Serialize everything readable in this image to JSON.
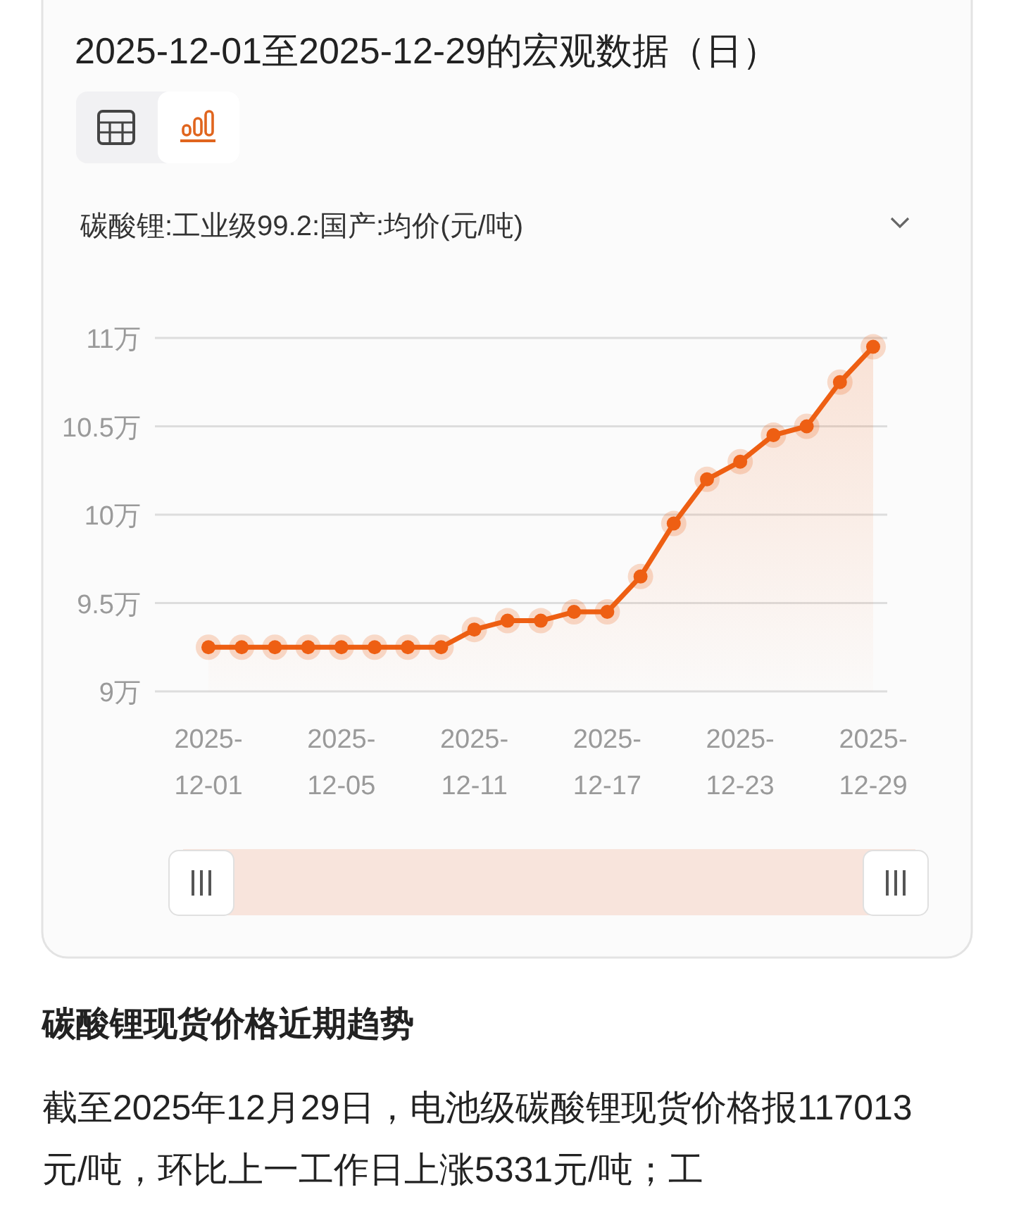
{
  "chart_data": {
    "type": "area",
    "title": "2025-12-01至2025-12-29的宏观数据（日）",
    "subtitle": "碳酸锂:工业级99.2:国产:均价(元/吨)",
    "categories": [
      "2025-12-01",
      null,
      null,
      null,
      "2025-12-05",
      null,
      null,
      null,
      "2025-12-11",
      null,
      null,
      null,
      "2025-12-17",
      null,
      null,
      null,
      "2025-12-23",
      null,
      null,
      null,
      "2025-12-29"
    ],
    "values": [
      9.25,
      9.25,
      9.25,
      9.25,
      9.25,
      9.25,
      9.25,
      9.25,
      9.35,
      9.4,
      9.4,
      9.45,
      9.45,
      9.65,
      9.95,
      10.2,
      10.3,
      10.45,
      10.5,
      10.75,
      10.95
    ],
    "color": "#ee5f13",
    "ylim": [
      9,
      11
    ],
    "yticks": [
      {
        "value": 9,
        "label": "9万"
      },
      {
        "value": 9.5,
        "label": "9.5万"
      },
      {
        "value": 10,
        "label": "10万"
      },
      {
        "value": 10.5,
        "label": "10.5万"
      },
      {
        "value": 11,
        "label": "11万"
      }
    ],
    "grid": "y",
    "marker": "circle",
    "annotations": [
      "碳酸锂现货价格近期趋势",
      "截至2025年12月29日，电池级碳酸锂现货价格报117013元/吨，环比上一工作日上涨5331元/吨；工"
    ]
  }
}
